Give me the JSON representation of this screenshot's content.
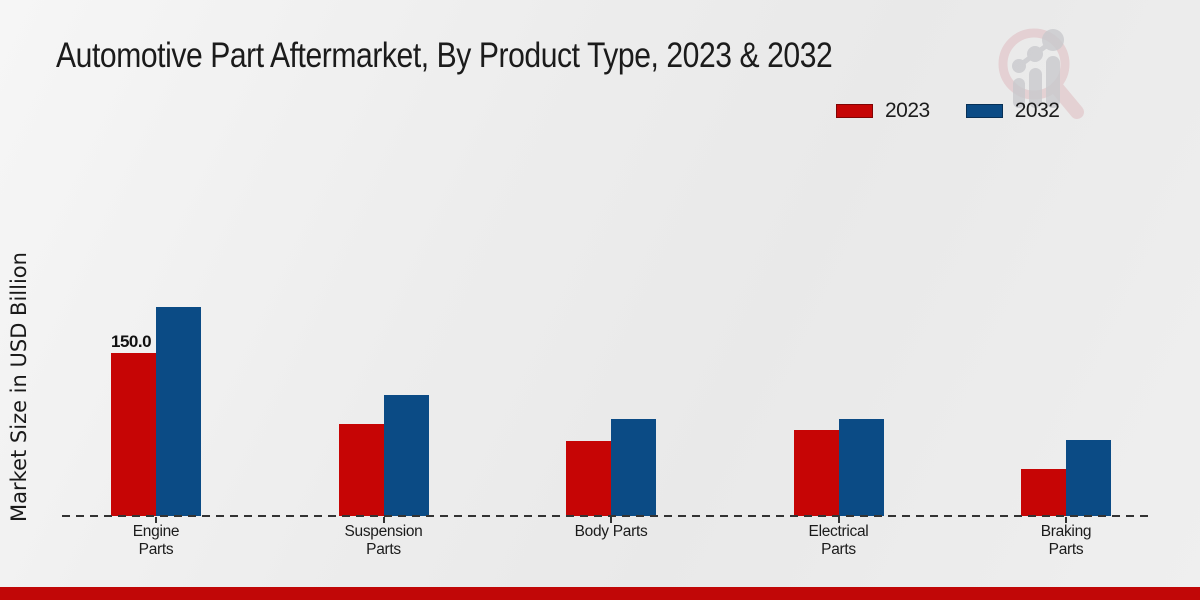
{
  "title": "Automotive Part Aftermarket, By Product Type, 2023 & 2032",
  "watermark_icon": "magnifying-glass-bar-chart-logo",
  "footer": {
    "color": "#c10707"
  },
  "chart_data": {
    "type": "bar",
    "title": "Automotive Part Aftermarket, By Product Type, 2023 & 2032",
    "ylabel": "Market Size in USD Billion",
    "xlabel": "",
    "categories": [
      "Engine Parts",
      "Suspension Parts",
      "Body Parts",
      "Electrical Parts",
      "Braking Parts"
    ],
    "category_labels": [
      "Engine\nParts",
      "Suspension\nParts",
      "Body Parts",
      "Electrical\nParts",
      "Braking\nParts"
    ],
    "series": [
      {
        "name": "2023",
        "color": "#c60505",
        "values": [
          150.0,
          85.0,
          69.0,
          79.0,
          43.0
        ]
      },
      {
        "name": "2032",
        "color": "#0b4b85",
        "values": [
          192.0,
          111.0,
          89.0,
          89.0,
          70.0
        ]
      }
    ],
    "annotations": [
      {
        "series_index": 0,
        "category_index": 0,
        "text": "150.0"
      }
    ],
    "ylim": [
      0,
      200
    ],
    "grid": false,
    "y_axis_ticks_visible": false,
    "baseline_style": "dashed",
    "legend_position": "top-right"
  }
}
